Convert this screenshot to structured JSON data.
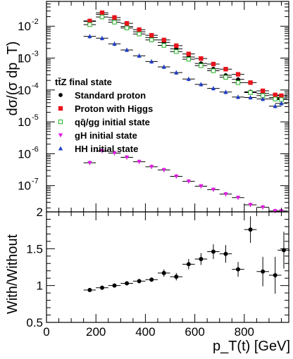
{
  "chart_data": [
    {
      "type": "scatter",
      "panel": "upper",
      "ylabel": "dσ/(σ dp_T)",
      "y_scale": "log",
      "ylim": [
        1.5e-08,
        0.06
      ],
      "xlim": [
        0,
        980
      ],
      "legend_title": "tt̄Z final state",
      "legend_placement": "left, middle",
      "x": [
        175,
        225,
        275,
        325,
        375,
        425,
        475,
        525,
        575,
        625,
        675,
        725,
        775,
        825,
        875,
        925,
        950
      ],
      "x_err": 25,
      "series": [
        {
          "name": "Standard proton",
          "color": "#000000",
          "marker": "circle-filled",
          "values": [
            0.0142,
            0.0235,
            0.0158,
            0.0098,
            0.0067,
            0.0044,
            0.0031,
            0.00195,
            0.00108,
            0.00068,
            0.00046,
            0.00029,
            0.000215,
            8.8e-05,
            7.8e-05,
            5.8e-05,
            5.5e-05
          ]
        },
        {
          "name": "Proton with Higgs",
          "color": "#e8141c",
          "marker": "square-filled",
          "values": [
            0.0146,
            0.0265,
            0.0188,
            0.0123,
            0.0078,
            0.0052,
            0.0037,
            0.00245,
            0.00135,
            0.00097,
            0.00065,
            0.00045,
            0.00031,
            0.00017,
            9.4e-05,
            7e-05,
            6.6e-05
          ]
        },
        {
          "name": "qq̄/gg initial state",
          "color": "#22b022",
          "marker": "square-open",
          "values": [
            0.0112,
            0.0195,
            0.0134,
            0.0088,
            0.0057,
            0.0037,
            0.0025,
            0.0016,
            0.00092,
            0.00058,
            0.0004,
            0.00025,
            0.00017,
            8.3e-05,
            6.7e-05,
            5.2e-05,
            5e-05
          ]
        },
        {
          "name": "gH initial state",
          "color": "#e619e6",
          "marker": "triangle-down",
          "values": [
            5.2e-07,
            1.22e-06,
            1.05e-06,
            7.7e-07,
            5.6e-07,
            3.9e-07,
            3.1e-07,
            1.95e-07,
            1.36e-07,
            9.6e-08,
            7.5e-08,
            5.4e-08,
            4.2e-08,
            2.5e-08,
            2.1e-08,
            1.6e-08,
            1.6e-08
          ]
        },
        {
          "name": "HH initial state",
          "color": "#1f3ec9",
          "marker": "triangle-up",
          "values": [
            0.0048,
            0.0042,
            0.0028,
            0.0018,
            0.00118,
            0.00078,
            0.00053,
            0.00035,
            0.00022,
            0.00015,
            0.000112,
            8.6e-05,
            6e-05,
            5.8e-05,
            5.2e-05,
            3.1e-05,
            3.8e-05
          ]
        }
      ],
      "y_ticks": [
        {
          "v": 1e-07,
          "label": "10",
          "exp": "-7"
        },
        {
          "v": 1e-06,
          "label": "10",
          "exp": "-6"
        },
        {
          "v": 1e-05,
          "label": "10",
          "exp": "-5"
        },
        {
          "v": 0.0001,
          "label": "10",
          "exp": "-4"
        },
        {
          "v": 0.001,
          "label": "10",
          "exp": "-3"
        },
        {
          "v": 0.01,
          "label": "10",
          "exp": "-2"
        }
      ]
    },
    {
      "type": "scatter",
      "panel": "lower",
      "ylabel": "With/Without",
      "xlabel": "p_T(t) [GeV]",
      "ylim": [
        0.5,
        2
      ],
      "xlim": [
        0,
        980
      ],
      "series": [
        {
          "name": "",
          "color": "#000000",
          "marker": "circle-filled",
          "x": [
            175,
            225,
            275,
            325,
            375,
            425,
            475,
            525,
            575,
            625,
            675,
            725,
            775,
            825,
            875,
            925,
            960
          ],
          "values": [
            0.94,
            0.97,
            1.0,
            1.03,
            1.06,
            1.08,
            1.17,
            1.12,
            1.29,
            1.36,
            1.46,
            1.43,
            1.22,
            1.76,
            1.19,
            1.14,
            1.48
          ],
          "y_err": [
            0.02,
            0.02,
            0.02,
            0.02,
            0.03,
            0.03,
            0.05,
            0.05,
            0.07,
            0.08,
            0.1,
            0.12,
            0.1,
            0.18,
            0.2,
            0.25,
            0.25
          ]
        }
      ],
      "y_ticks": [
        {
          "v": 0.5,
          "label": "0.5"
        },
        {
          "v": 1,
          "label": "1"
        },
        {
          "v": 1.5,
          "label": "1.5"
        },
        {
          "v": 2,
          "label": "2"
        }
      ],
      "x_ticks": [
        {
          "v": 0,
          "label": "0"
        },
        {
          "v": 200,
          "label": "200"
        },
        {
          "v": 400,
          "label": "400"
        },
        {
          "v": 600,
          "label": "600"
        },
        {
          "v": 800,
          "label": "800"
        }
      ]
    }
  ]
}
